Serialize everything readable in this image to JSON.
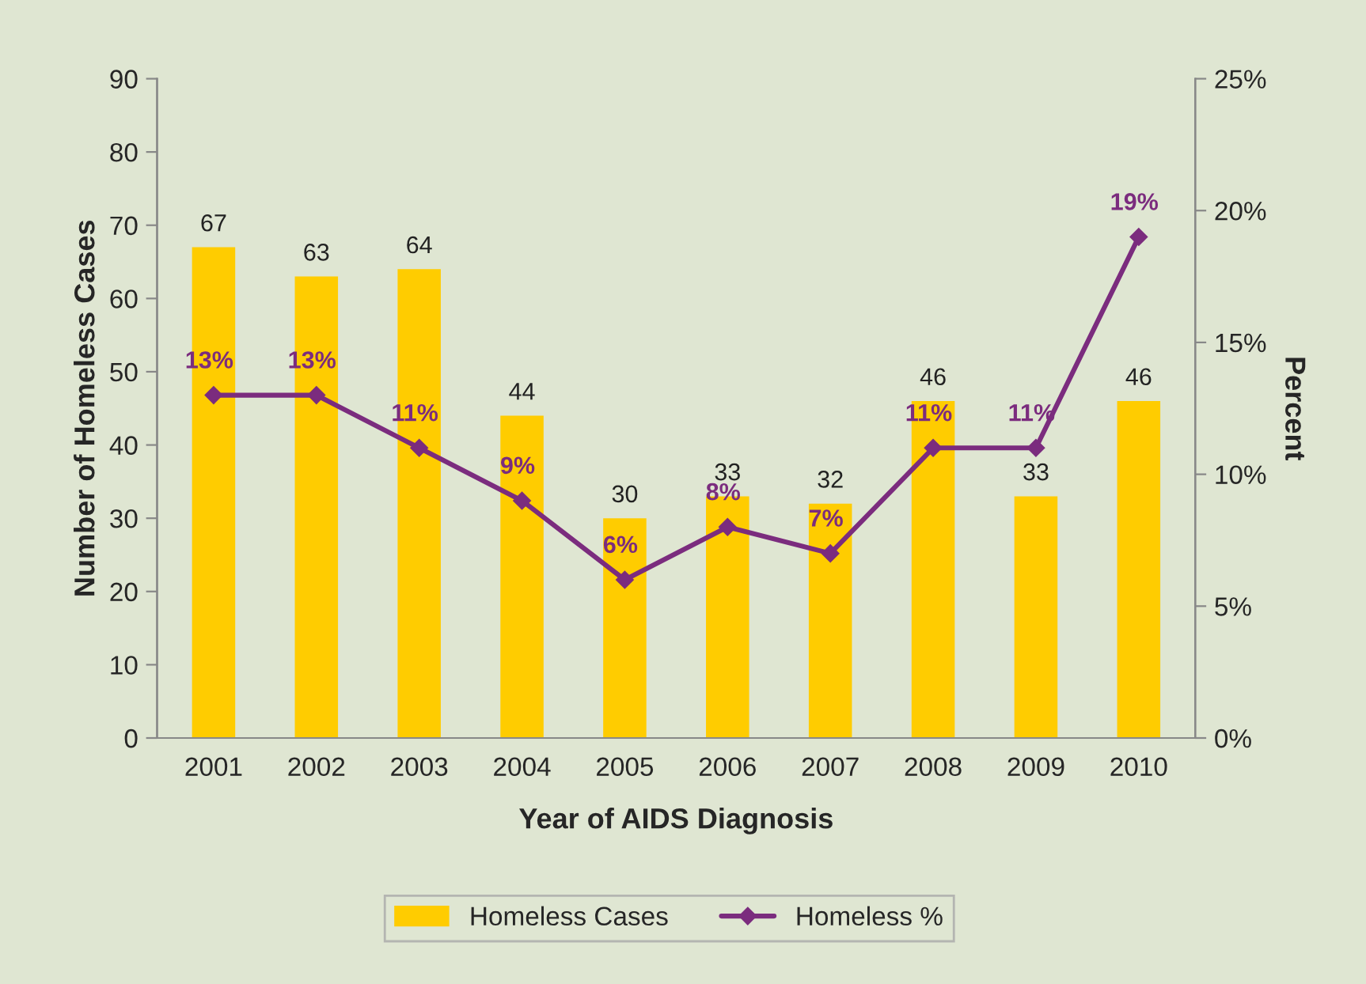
{
  "chart_data": {
    "type": "bar",
    "xlabel": "Year of AIDS Diagnosis",
    "ylabel": "Number of Homeless Cases",
    "y2label": "Percent",
    "categories": [
      "2001",
      "2002",
      "2003",
      "2004",
      "2005",
      "2006",
      "2007",
      "2008",
      "2009",
      "2010"
    ],
    "series": [
      {
        "name": "Homeless Cases",
        "color": "#ffcc00",
        "values": [
          67,
          63,
          64,
          44,
          30,
          33,
          32,
          46,
          33,
          46
        ],
        "value_labels": [
          "67",
          "63",
          "64",
          "44",
          "30",
          "33",
          "32",
          "46",
          "33",
          "46"
        ]
      },
      {
        "name": "Homeless %",
        "type": "line",
        "axis": "y2",
        "color": "#7b2c7e",
        "marker": "diamond",
        "values": [
          13,
          13,
          11,
          9,
          6,
          8,
          7,
          11,
          11,
          19
        ],
        "value_labels": [
          "13%",
          "13%",
          "11%",
          "9%",
          "6%",
          "8%",
          "7%",
          "11%",
          "11%",
          "19%"
        ]
      }
    ],
    "ylim": [
      0,
      90
    ],
    "yticks": [
      0,
      10,
      20,
      30,
      40,
      50,
      60,
      70,
      80,
      90
    ],
    "y2lim": [
      0,
      25
    ],
    "y2ticks": [
      {
        "value": 0,
        "label": "0%"
      },
      {
        "value": 5,
        "label": "5%"
      },
      {
        "value": 10,
        "label": "10%"
      },
      {
        "value": 15,
        "label": "15%"
      },
      {
        "value": 20,
        "label": "20%"
      },
      {
        "value": 25,
        "label": "25%"
      }
    ],
    "grid": false,
    "legend": "bottom"
  }
}
